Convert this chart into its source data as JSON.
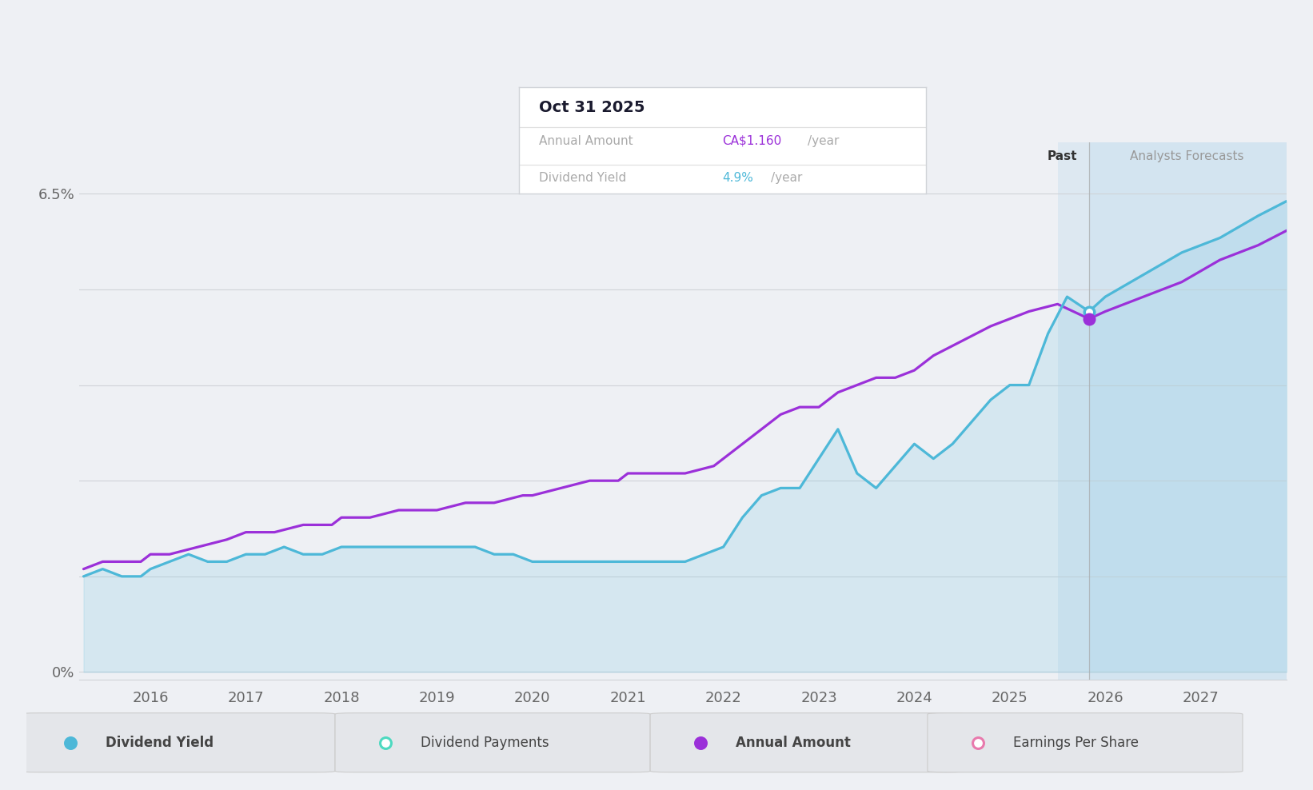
{
  "bg_color": "#eef0f4",
  "plot_bg_color": "#eef0f4",
  "annual_amount_color": "#9b30d9",
  "dividend_yield_color": "#4db8d8",
  "forecast_start": 2025.83,
  "xmin": 2015.25,
  "xmax": 2027.9,
  "ylim_top": 0.072,
  "tooltip_date": "Oct 31 2025",
  "tooltip_annual_label": "Annual Amount",
  "tooltip_annual_value": "CA$1.160",
  "tooltip_annual_suffix": "/year",
  "tooltip_yield_label": "Dividend Yield",
  "tooltip_yield_value": "4.9%",
  "tooltip_yield_suffix": "/year",
  "grid_color": "#d0d3d8",
  "label_color": "#666666",
  "dividend_yield_data_x": [
    2015.3,
    2015.5,
    2015.7,
    2015.9,
    2016.0,
    2016.2,
    2016.4,
    2016.6,
    2016.8,
    2017.0,
    2017.2,
    2017.4,
    2017.6,
    2017.8,
    2018.0,
    2018.2,
    2018.4,
    2018.6,
    2018.8,
    2019.0,
    2019.2,
    2019.4,
    2019.6,
    2019.8,
    2020.0,
    2020.2,
    2020.4,
    2020.6,
    2020.8,
    2021.0,
    2021.2,
    2021.4,
    2021.6,
    2021.8,
    2022.0,
    2022.2,
    2022.4,
    2022.6,
    2022.8,
    2023.0,
    2023.2,
    2023.4,
    2023.6,
    2023.8,
    2024.0,
    2024.2,
    2024.4,
    2024.6,
    2024.8,
    2025.0,
    2025.2,
    2025.4,
    2025.6,
    2025.83
  ],
  "dividend_yield_data_y": [
    0.013,
    0.014,
    0.013,
    0.013,
    0.014,
    0.015,
    0.016,
    0.015,
    0.015,
    0.016,
    0.016,
    0.017,
    0.016,
    0.016,
    0.017,
    0.017,
    0.017,
    0.017,
    0.017,
    0.017,
    0.017,
    0.017,
    0.016,
    0.016,
    0.015,
    0.015,
    0.015,
    0.015,
    0.015,
    0.015,
    0.015,
    0.015,
    0.015,
    0.016,
    0.017,
    0.021,
    0.024,
    0.025,
    0.025,
    0.029,
    0.033,
    0.027,
    0.025,
    0.028,
    0.031,
    0.029,
    0.031,
    0.034,
    0.037,
    0.039,
    0.039,
    0.046,
    0.051,
    0.049
  ],
  "dividend_yield_forecast_x": [
    2025.83,
    2026.0,
    2026.4,
    2026.8,
    2027.2,
    2027.6,
    2027.9
  ],
  "dividend_yield_forecast_y": [
    0.049,
    0.051,
    0.054,
    0.057,
    0.059,
    0.062,
    0.064
  ],
  "annual_amount_data_x": [
    2015.3,
    2015.5,
    2015.7,
    2015.9,
    2016.0,
    2016.2,
    2016.5,
    2016.8,
    2017.0,
    2017.3,
    2017.6,
    2017.9,
    2018.0,
    2018.3,
    2018.6,
    2018.9,
    2019.0,
    2019.3,
    2019.6,
    2019.9,
    2020.0,
    2020.3,
    2020.6,
    2020.9,
    2021.0,
    2021.3,
    2021.6,
    2021.9,
    2022.0,
    2022.2,
    2022.4,
    2022.6,
    2022.8,
    2023.0,
    2023.2,
    2023.4,
    2023.6,
    2023.8,
    2024.0,
    2024.2,
    2024.5,
    2024.8,
    2025.0,
    2025.2,
    2025.5,
    2025.83
  ],
  "annual_amount_data_y": [
    0.014,
    0.015,
    0.015,
    0.015,
    0.016,
    0.016,
    0.017,
    0.018,
    0.019,
    0.019,
    0.02,
    0.02,
    0.021,
    0.021,
    0.022,
    0.022,
    0.022,
    0.023,
    0.023,
    0.024,
    0.024,
    0.025,
    0.026,
    0.026,
    0.027,
    0.027,
    0.027,
    0.028,
    0.029,
    0.031,
    0.033,
    0.035,
    0.036,
    0.036,
    0.038,
    0.039,
    0.04,
    0.04,
    0.041,
    0.043,
    0.045,
    0.047,
    0.048,
    0.049,
    0.05,
    0.048
  ],
  "annual_amount_forecast_x": [
    2025.83,
    2026.0,
    2026.4,
    2026.8,
    2027.2,
    2027.6,
    2027.9
  ],
  "annual_amount_forecast_y": [
    0.048,
    0.049,
    0.051,
    0.053,
    0.056,
    0.058,
    0.06
  ],
  "dot_blue_x": 2025.83,
  "dot_blue_y": 0.049,
  "dot_purple_x": 2025.83,
  "dot_purple_y": 0.048,
  "year_ticks": [
    2016,
    2017,
    2018,
    2019,
    2020,
    2021,
    2022,
    2023,
    2024,
    2025,
    2026,
    2027
  ],
  "legend_items": [
    {
      "label": "Dividend Yield",
      "mfc": "#4db8d8",
      "mec": "#4db8d8",
      "bold": true
    },
    {
      "label": "Dividend Payments",
      "mfc": "white",
      "mec": "#4dd9c0",
      "bold": false
    },
    {
      "label": "Annual Amount",
      "mfc": "#9b30d9",
      "mec": "#9b30d9",
      "bold": true
    },
    {
      "label": "Earnings Per Share",
      "mfc": "white",
      "mec": "#e87aad",
      "bold": false
    }
  ]
}
